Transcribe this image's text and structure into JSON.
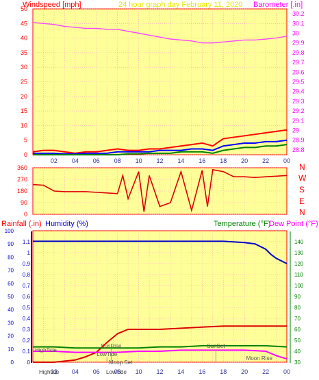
{
  "header": {
    "wind_title": "Windspeed [mph]",
    "main_title": "24 hour graph day   February 11, 2020",
    "baro_title": "Barometer [.in]"
  },
  "x_axis": {
    "tick_labels": [
      "02",
      "04",
      "06",
      "08",
      "10",
      "12",
      "14",
      "16",
      "18",
      "20",
      "22",
      "00"
    ]
  },
  "colors": {
    "plot_bg": "#ffff99",
    "frame_bg": "#ffffff",
    "grid": "#f4a4c8",
    "axis_red": "#ff0000",
    "axis_magenta": "#ff00ff",
    "axis_blue": "#0000cc",
    "axis_green": "#008000",
    "title_yellow": "#e6e600",
    "baro_line": "#ff44ff",
    "gust": "#ff0000",
    "wind_avg": "#0000ff",
    "wind_low": "#008000",
    "direction": "#dd0000",
    "humidity": "#0000cc",
    "rain": "#dd0000",
    "temperature": "#008000",
    "dewpoint": "#ff00ff"
  },
  "chart_data": [
    {
      "type": "line",
      "title": "Windspeed [mph]",
      "ylabel": "Windspeed [mph]",
      "ylim": [
        0,
        50
      ],
      "yticks": [
        "0",
        "5",
        "10",
        "15",
        "20",
        "25",
        "30",
        "35",
        "40",
        "45",
        "50"
      ],
      "x_hours": [
        0,
        1,
        2,
        3,
        4,
        5,
        6,
        7,
        8,
        9,
        10,
        11,
        12,
        13,
        14,
        15,
        16,
        17,
        18,
        19,
        20,
        21,
        22,
        23,
        24
      ],
      "series": [
        {
          "values": [
            1,
            1.5,
            1.5,
            1,
            0.5,
            1,
            1,
            1.5,
            2,
            1.5,
            1.5,
            2,
            2,
            2.5,
            3,
            3.5,
            4,
            3,
            5.5,
            6,
            6.5,
            7,
            7.5,
            8,
            8.5
          ]
        },
        {
          "values": [
            0.5,
            0.5,
            0.5,
            0.3,
            0.3,
            0.5,
            0.5,
            0.5,
            1,
            1,
            1,
            1,
            1.5,
            1.5,
            1.5,
            2,
            2,
            1.5,
            3,
            3.5,
            4,
            4,
            4.5,
            4.5,
            5
          ]
        },
        {
          "values": [
            0,
            0,
            0,
            0,
            0,
            0,
            0,
            0,
            0,
            0.3,
            0.3,
            0.5,
            0.5,
            0.5,
            1,
            1,
            1,
            0.5,
            1.5,
            2,
            2.5,
            2.5,
            3,
            3,
            3.5
          ]
        }
      ]
    },
    {
      "type": "line",
      "title": "Barometer [.in]",
      "ylabel": "Barometer [.in]",
      "ylim": [
        28.75,
        30.25
      ],
      "yticks": [
        "28.8",
        "28.9",
        "29",
        "29.1",
        "29.2",
        "29.3",
        "29.4",
        "29.5",
        "29.6",
        "29.7",
        "29.8",
        "29.9",
        "30",
        "30.1",
        "30.2"
      ],
      "x_hours": [
        0,
        1,
        2,
        3,
        4,
        5,
        6,
        7,
        8,
        9,
        10,
        11,
        12,
        13,
        14,
        15,
        16,
        17,
        18,
        19,
        20,
        21,
        22,
        23,
        24
      ],
      "values": [
        30.11,
        30.1,
        30.09,
        30.07,
        30.06,
        30.05,
        30.05,
        30.04,
        30.04,
        30.02,
        30.0,
        29.98,
        29.96,
        29.94,
        29.93,
        29.92,
        29.9,
        29.9,
        29.91,
        29.92,
        29.93,
        29.93,
        29.94,
        29.95,
        29.97
      ]
    },
    {
      "type": "line",
      "title": "Wind direction",
      "ylim": [
        0,
        360
      ],
      "yticks": [
        "0",
        "90",
        "180",
        "270",
        "360"
      ],
      "compass_labels": [
        "N",
        "W",
        "S",
        "E",
        "N"
      ],
      "x_hours": [
        0,
        1,
        2,
        3,
        4,
        5,
        6,
        7,
        8,
        8.5,
        9,
        10,
        10.5,
        11,
        12,
        13,
        14,
        15,
        16,
        16.5,
        17,
        18,
        19,
        20,
        21,
        22,
        23,
        24
      ],
      "values": [
        230,
        225,
        180,
        175,
        175,
        175,
        170,
        165,
        160,
        300,
        120,
        330,
        20,
        300,
        60,
        90,
        330,
        30,
        340,
        60,
        345,
        330,
        290,
        290,
        285,
        290,
        295,
        300
      ]
    },
    {
      "type": "line",
      "title": "Humidity (%)",
      "ylabel": "Humidity (%)",
      "ylim": [
        0,
        100
      ],
      "x_hours": [
        0,
        2,
        4,
        6,
        8,
        10,
        12,
        14,
        16,
        18,
        20,
        21,
        22,
        22.5,
        23,
        23.5,
        24
      ],
      "values": [
        92,
        92,
        92,
        92,
        92,
        92,
        92,
        92,
        92,
        92,
        91,
        90,
        86,
        82,
        79,
        77,
        75
      ]
    },
    {
      "type": "line",
      "title": "Rainfall (.in)",
      "ylabel": "Rainfall (.in)",
      "ylim": [
        0,
        1.2
      ],
      "yticks": [
        "0",
        "0.1",
        "0.2",
        "0.3",
        "0.4",
        "0.5",
        "0.6",
        "0.7",
        "0.8",
        "0.9",
        "1",
        "1.1"
      ],
      "x_hours": [
        0,
        2,
        4,
        5,
        6,
        7,
        8,
        9,
        10,
        12,
        14,
        16,
        18,
        20,
        22,
        24
      ],
      "values": [
        0,
        0,
        0.02,
        0.05,
        0.09,
        0.18,
        0.26,
        0.3,
        0.3,
        0.3,
        0.31,
        0.32,
        0.33,
        0.33,
        0.33,
        0.33
      ]
    },
    {
      "type": "line",
      "title": "Temperature (°F)",
      "ylabel": "Temperature (°F)",
      "ylim": [
        30,
        150
      ],
      "yticks": [
        "30",
        "40",
        "50",
        "60",
        "70",
        "80",
        "90",
        "100",
        "110",
        "120",
        "130",
        "140"
      ],
      "x_hours": [
        0,
        2,
        4,
        6,
        8,
        10,
        12,
        14,
        16,
        18,
        20,
        22,
        24
      ],
      "values": [
        44,
        44,
        43,
        43,
        43,
        43,
        44,
        44,
        45,
        45,
        45,
        45,
        44
      ]
    },
    {
      "type": "line",
      "title": "Dew Point (°F)",
      "ylabel": "Dew Point (°F)",
      "ylim": [
        30,
        150
      ],
      "x_hours": [
        0,
        2,
        4,
        6,
        8,
        10,
        12,
        14,
        16,
        18,
        20,
        22,
        23,
        24
      ],
      "values": [
        40,
        40,
        39,
        39,
        39,
        40,
        40,
        41,
        41,
        41,
        41,
        40,
        36,
        33
      ]
    }
  ],
  "events": [
    {
      "label": "HighTide",
      "hour": 0.2
    },
    {
      "label": "SunRise",
      "hour": 7.4
    },
    {
      "label": "LowTide",
      "hour": 7.0
    },
    {
      "label": "Moon Set",
      "hour": 8.3
    },
    {
      "label": "SunSet",
      "hour": 17.3
    },
    {
      "label": "Moon Rise",
      "hour": 21.4
    }
  ],
  "bottom_labels": [
    "Hightide",
    "LowTide"
  ],
  "legend": {
    "rainfall": "Rainfall (.in)",
    "humidity": "Humidity (%)",
    "temperature": "Temperature (°F)",
    "dewpoint": "Dew Point (°F)"
  }
}
